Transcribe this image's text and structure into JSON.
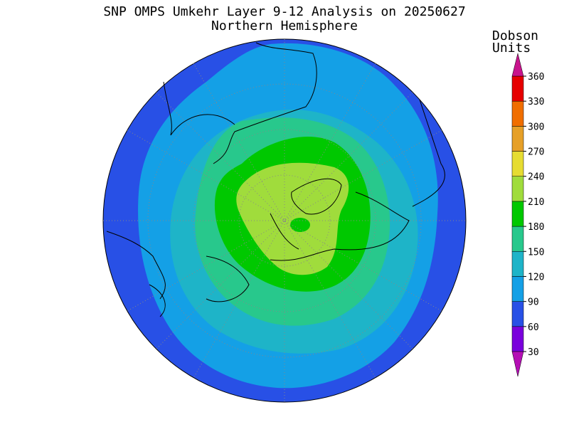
{
  "title": "SNP OMPS Umkehr Layer 9-12 Analysis on 20250627",
  "subtitle": "Northern Hemisphere",
  "colorbar": {
    "label": [
      "Dobson",
      "Units"
    ],
    "ticks": [
      30,
      60,
      90,
      120,
      150,
      180,
      210,
      240,
      270,
      300,
      330,
      360
    ],
    "colors": [
      "#b40fb4",
      "#7a00dc",
      "#2850e6",
      "#14a0e6",
      "#1eb4c8",
      "#28c88c",
      "#00c800",
      "#a0dc3c",
      "#e6dc32",
      "#e6a028",
      "#f06e00",
      "#e60000",
      "#c8148c"
    ]
  }
}
